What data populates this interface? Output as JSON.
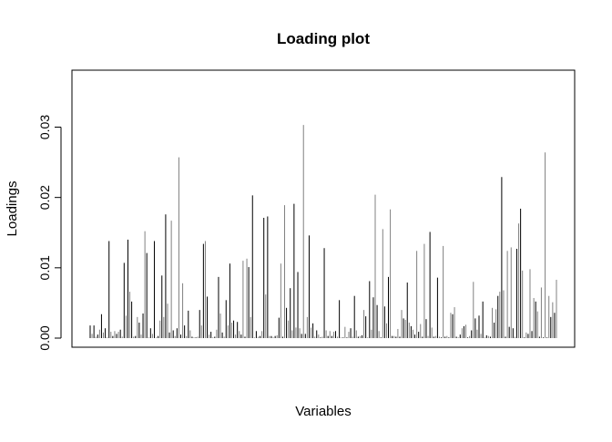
{
  "chart_data": {
    "type": "bar",
    "title": "Loading plot",
    "xlabel": "Variables",
    "ylabel": "Loadings",
    "ylim": [
      0,
      0.038
    ],
    "yticks": [
      "0.00",
      "0.01",
      "0.02",
      "0.03"
    ],
    "ytick_values": [
      0.0,
      0.01,
      0.02,
      0.03
    ],
    "grid": false,
    "legend": "none",
    "bar_colors": [
      "#000000",
      "#808080"
    ],
    "values": [
      0.0018,
      0.0006,
      0.0018,
      0.0002,
      0.0005,
      0.0012,
      0.0034,
      0.0008,
      0.0014,
      0.0001,
      0.0138,
      0.0009,
      0.0003,
      0.001,
      0.0006,
      0.0009,
      0.0012,
      0.0002,
      0.0107,
      0.0032,
      0.014,
      0.0066,
      0.0052,
      0.0002,
      0.0003,
      0.003,
      0.0022,
      0.0005,
      0.0035,
      0.0152,
      0.0121,
      0.0001,
      0.0014,
      0.0006,
      0.0138,
      0.0001,
      0.0003,
      0.0025,
      0.0089,
      0.003,
      0.0176,
      0.0049,
      0.0008,
      0.0167,
      0.0011,
      0.0003,
      0.0014,
      0.0257,
      0.0005,
      0.0078,
      0.0018,
      0.0003,
      0.0039,
      0.0011,
      0.0002,
      0.0001,
      0.0001,
      0.0002,
      0.004,
      0.0018,
      0.0134,
      0.0138,
      0.0059,
      0.0005,
      0.0009,
      0.0001,
      0.0002,
      0.0012,
      0.0087,
      0.0035,
      0.0008,
      0.0002,
      0.0054,
      0.0018,
      0.0106,
      0.0022,
      0.0025,
      0.0005,
      0.0023,
      0.001,
      0.0005,
      0.011,
      0.0002,
      0.0113,
      0.0101,
      0.003,
      0.0203,
      0.0001,
      0.001,
      0.0002,
      0.0003,
      0.001,
      0.0171,
      0.0062,
      0.0173,
      0.0003,
      0.0003,
      0.0001,
      0.0003,
      0.0004,
      0.0029,
      0.0106,
      0.0002,
      0.0189,
      0.0043,
      0.0025,
      0.0071,
      0.0011,
      0.0191,
      0.0015,
      0.0094,
      0.0014,
      0.0006,
      0.0303,
      0.0006,
      0.003,
      0.0146,
      0.0015,
      0.0021,
      0.0002,
      0.0011,
      0.0005,
      0.0001,
      0.0002,
      0.0128,
      0.0011,
      0.0003,
      0.001,
      0.0003,
      0.0009,
      0.001,
      0.0002,
      0.0054,
      0.0001,
      0.0001,
      0.0016,
      0.0001,
      0.0009,
      0.0014,
      0.0002,
      0.006,
      0.0011,
      0.0002,
      0.0003,
      0.0004,
      0.004,
      0.0031,
      0.0001,
      0.0081,
      0.0012,
      0.0058,
      0.0204,
      0.0047,
      0.001,
      0.0001,
      0.0155,
      0.0045,
      0.0021,
      0.0087,
      0.0183,
      0.0003,
      0.0003,
      0.0002,
      0.0013,
      0.0002,
      0.004,
      0.0028,
      0.0026,
      0.0079,
      0.0022,
      0.0017,
      0.0012,
      0.0005,
      0.0124,
      0.0009,
      0.002,
      0.0002,
      0.0134,
      0.0027,
      0.0003,
      0.0151,
      0.0015,
      0.0002,
      0.0003,
      0.0086,
      0.0002,
      0.0001,
      0.0131,
      0.0002,
      0.0003,
      0.0001,
      0.0036,
      0.0034,
      0.0044,
      0.0002,
      0.0001,
      0.0005,
      0.0014,
      0.0017,
      0.0019,
      0.0001,
      0.0003,
      0.0011,
      0.008,
      0.0028,
      0.0012,
      0.0032,
      0.0006,
      0.0052,
      0.0001,
      0.0004,
      0.0003,
      0.0002,
      0.0043,
      0.0022,
      0.0041,
      0.006,
      0.0066,
      0.0229,
      0.0068,
      0.0002,
      0.0124,
      0.0016,
      0.0129,
      0.0014,
      0.0002,
      0.0127,
      0.0163,
      0.0184,
      0.0096,
      0.0001,
      0.0008,
      0.0006,
      0.0098,
      0.001,
      0.0057,
      0.0052,
      0.0038,
      0.0002,
      0.0072,
      0.0001,
      0.0264,
      0.0001,
      0.006,
      0.003,
      0.0051,
      0.0036,
      0.0083
    ]
  }
}
